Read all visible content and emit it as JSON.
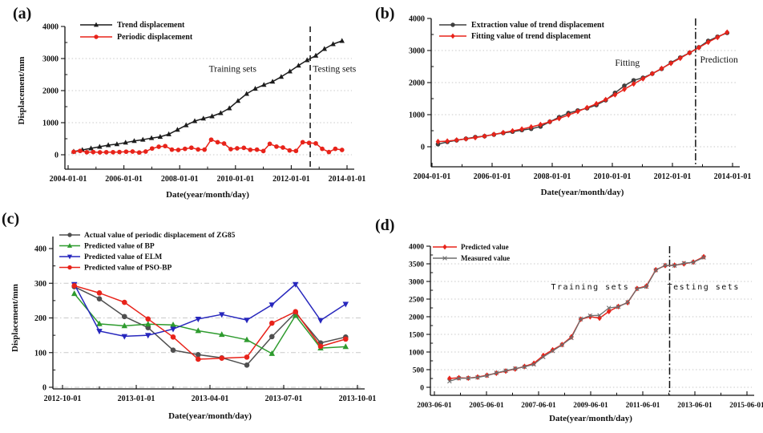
{
  "chart_data": [
    {
      "id": "a",
      "panel_label": "(a)",
      "type": "line",
      "xlabel": "Date(year/month/day)",
      "ylabel": "Displacement/mm",
      "xlim": [
        2004,
        2014
      ],
      "ylim": [
        0,
        4000
      ],
      "grid": "dotted",
      "legend_position": "top-left",
      "x_ticks": [
        {
          "v": 2004,
          "t": "2004-01-01"
        },
        {
          "v": 2006,
          "t": "2006-01-01"
        },
        {
          "v": 2008,
          "t": "2008-01-01"
        },
        {
          "v": 2010,
          "t": "2010-01-01"
        },
        {
          "v": 2012,
          "t": "2012-01-01"
        },
        {
          "v": 2014,
          "t": "2014-01-01"
        }
      ],
      "y_ticks": [
        {
          "v": 0,
          "t": "0"
        },
        {
          "v": 1000,
          "t": "1000"
        },
        {
          "v": 2000,
          "t": "2000"
        },
        {
          "v": 3000,
          "t": "3000"
        },
        {
          "v": 4000,
          "t": "4000"
        }
      ],
      "annotations": [
        {
          "text": "Training sets",
          "x": 2009.9,
          "y": 2590
        },
        {
          "text": "Testing sets",
          "x": 2013.55,
          "y": 2590
        }
      ],
      "vline": {
        "x": 2012.68,
        "style": "dashed"
      },
      "series": [
        {
          "name": "Trend displacement",
          "color": "#1c1c1c",
          "marker": "triangle-up",
          "x": [
            2004.2,
            2004.51,
            2004.82,
            2005.13,
            2005.44,
            2005.75,
            2006.06,
            2006.37,
            2006.68,
            2006.99,
            2007.3,
            2007.61,
            2007.92,
            2008.23,
            2008.54,
            2008.85,
            2009.16,
            2009.47,
            2009.78,
            2010.09,
            2010.4,
            2010.71,
            2011.02,
            2011.33,
            2011.64,
            2011.95,
            2012.26,
            2012.57,
            2012.88,
            2013.19,
            2013.5,
            2013.82
          ],
          "y": [
            100,
            150,
            200,
            250,
            300,
            330,
            380,
            430,
            470,
            520,
            560,
            640,
            780,
            920,
            1050,
            1130,
            1200,
            1300,
            1450,
            1680,
            1900,
            2060,
            2180,
            2280,
            2430,
            2600,
            2780,
            2950,
            3090,
            3300,
            3450,
            3550
          ]
        },
        {
          "name": "Periodic displacement",
          "color": "#e8231a",
          "marker": "circle",
          "x": [
            2004.2,
            2004.43,
            2004.67,
            2004.9,
            2005.14,
            2005.37,
            2005.61,
            2005.84,
            2006.08,
            2006.31,
            2006.55,
            2006.78,
            2007.01,
            2007.25,
            2007.48,
            2007.72,
            2007.95,
            2008.19,
            2008.42,
            2008.66,
            2008.89,
            2009.13,
            2009.36,
            2009.59,
            2009.83,
            2010.06,
            2010.3,
            2010.53,
            2010.77,
            2011.0,
            2011.23,
            2011.47,
            2011.7,
            2011.94,
            2012.17,
            2012.41,
            2012.64,
            2012.88,
            2013.11,
            2013.35,
            2013.58,
            2013.82
          ],
          "y": [
            90,
            120,
            80,
            85,
            75,
            80,
            80,
            85,
            95,
            100,
            70,
            100,
            195,
            250,
            270,
            160,
            150,
            185,
            220,
            165,
            160,
            470,
            390,
            350,
            175,
            200,
            215,
            155,
            160,
            115,
            340,
            255,
            225,
            135,
            120,
            390,
            370,
            355,
            185,
            85,
            185,
            150
          ]
        }
      ]
    },
    {
      "id": "b",
      "panel_label": "(b)",
      "type": "line",
      "xlabel": "Date(year/month/day)",
      "ylabel": "",
      "xlim": [
        2004,
        2014
      ],
      "ylim": [
        0,
        4000
      ],
      "grid": "dotted",
      "legend_position": "top-left",
      "x_ticks": [
        {
          "v": 2004,
          "t": "2004-01-01"
        },
        {
          "v": 2006,
          "t": "2006-01-01"
        },
        {
          "v": 2008,
          "t": "2008-01-01"
        },
        {
          "v": 2010,
          "t": "2010-01-01"
        },
        {
          "v": 2012,
          "t": "2012-01-01"
        },
        {
          "v": 2014,
          "t": "2014-01-01"
        }
      ],
      "y_ticks": [
        {
          "v": 0,
          "t": "0"
        },
        {
          "v": 1000,
          "t": "1000"
        },
        {
          "v": 2000,
          "t": "2000"
        },
        {
          "v": 3000,
          "t": "3000"
        },
        {
          "v": 4000,
          "t": "4000"
        }
      ],
      "annotations": [
        {
          "text": "Fitting",
          "x": 2010.5,
          "y": 2520
        },
        {
          "text": "Prediction",
          "x": 2013.55,
          "y": 2620
        }
      ],
      "vline": {
        "x": 2012.77,
        "style": "dashdot"
      },
      "series": [
        {
          "name": "Extraction value of trend displacement",
          "color": "#3f3f3f",
          "marker": "circle",
          "x": [
            2004.2,
            2004.51,
            2004.82,
            2005.13,
            2005.44,
            2005.75,
            2006.06,
            2006.37,
            2006.68,
            2006.99,
            2007.3,
            2007.61,
            2007.92,
            2008.23,
            2008.54,
            2008.85,
            2009.16,
            2009.47,
            2009.78,
            2010.09,
            2010.4,
            2010.71,
            2011.02,
            2011.33,
            2011.64,
            2011.95,
            2012.26,
            2012.57,
            2012.88,
            2013.19,
            2013.5,
            2013.82
          ],
          "y": [
            80,
            150,
            200,
            250,
            300,
            330,
            380,
            430,
            470,
            520,
            560,
            630,
            780,
            920,
            1050,
            1130,
            1200,
            1300,
            1450,
            1680,
            1900,
            2070,
            2150,
            2280,
            2430,
            2620,
            2780,
            2930,
            3100,
            3300,
            3430,
            3550
          ]
        },
        {
          "name": "Fitting value of trend displacement",
          "color": "#e8231a",
          "marker": "diamond",
          "x": [
            2004.2,
            2004.51,
            2004.82,
            2005.13,
            2005.44,
            2005.75,
            2006.06,
            2006.37,
            2006.68,
            2006.99,
            2007.3,
            2007.61,
            2007.92,
            2008.23,
            2008.54,
            2008.85,
            2009.16,
            2009.47,
            2009.78,
            2010.09,
            2010.4,
            2010.71,
            2011.02,
            2011.33,
            2011.64,
            2011.95,
            2012.26,
            2012.57,
            2012.88,
            2013.19,
            2013.5,
            2013.82
          ],
          "y": [
            160,
            175,
            210,
            245,
            285,
            330,
            385,
            440,
            495,
            550,
            615,
            690,
            780,
            880,
            990,
            1100,
            1220,
            1340,
            1470,
            1620,
            1790,
            1960,
            2120,
            2280,
            2440,
            2600,
            2760,
            2930,
            3090,
            3260,
            3410,
            3570
          ]
        }
      ]
    },
    {
      "id": "c",
      "panel_label": "(c)",
      "type": "line",
      "xlabel": "Date(year/month/day)",
      "ylabel": "Displacement/mm",
      "xlim": [
        2012.75,
        2013.75
      ],
      "ylim": [
        0,
        400
      ],
      "grid": "dashdot",
      "legend_position": "top-left",
      "x_ticks": [
        {
          "v": 2012.75,
          "t": "2012-10-01"
        },
        {
          "v": 2013.0,
          "t": "2013-01-01"
        },
        {
          "v": 2013.25,
          "t": "2013-04-01"
        },
        {
          "v": 2013.5,
          "t": "2013-07-01"
        },
        {
          "v": 2013.75,
          "t": "2013-10-01"
        }
      ],
      "y_ticks": [
        {
          "v": 0,
          "t": "0"
        },
        {
          "v": 100,
          "t": "100"
        },
        {
          "v": 200,
          "t": "200"
        },
        {
          "v": 300,
          "t": "300"
        },
        {
          "v": 400,
          "t": "400"
        }
      ],
      "annotations": [],
      "vline": null,
      "series": [
        {
          "name": "Actual value of periodic displacement of ZG85",
          "color": "#4f4f4f",
          "marker": "circle",
          "x": [
            2012.79,
            2012.875,
            2012.96,
            2013.04,
            2013.125,
            2013.21,
            2013.29,
            2013.375,
            2013.46,
            2013.54,
            2013.625,
            2013.71
          ],
          "y": [
            290,
            255,
            204,
            172,
            107,
            94,
            85,
            64,
            146,
            215,
            128,
            145
          ]
        },
        {
          "name": "Predicted value of BP",
          "color": "#2e9b2e",
          "marker": "triangle-up",
          "x": [
            2012.79,
            2012.875,
            2012.96,
            2013.04,
            2013.125,
            2013.21,
            2013.29,
            2013.375,
            2013.46,
            2013.54,
            2013.625,
            2013.71
          ],
          "y": [
            270,
            183,
            177,
            182,
            180,
            163,
            152,
            137,
            97,
            207,
            113,
            117
          ]
        },
        {
          "name": "Predicted value of ELM",
          "color": "#2727bd",
          "marker": "triangle-down",
          "x": [
            2012.79,
            2012.875,
            2012.96,
            2013.04,
            2013.125,
            2013.21,
            2013.29,
            2013.375,
            2013.46,
            2013.54,
            2013.625,
            2013.71
          ],
          "y": [
            297,
            162,
            147,
            150,
            168,
            197,
            210,
            194,
            238,
            297,
            193,
            240
          ]
        },
        {
          "name": "Predicted value of PSO-BP",
          "color": "#e8231a",
          "marker": "circle",
          "x": [
            2012.79,
            2012.875,
            2012.96,
            2013.04,
            2013.125,
            2013.21,
            2013.29,
            2013.375,
            2013.46,
            2013.54,
            2013.625,
            2013.71
          ],
          "y": [
            293,
            272,
            245,
            197,
            145,
            81,
            84,
            87,
            185,
            218,
            118,
            139
          ]
        }
      ]
    },
    {
      "id": "d",
      "panel_label": "(d)",
      "type": "line",
      "xlabel": "Date(year/month/day)",
      "ylabel": "",
      "xlim": [
        2003.42,
        2015.42
      ],
      "ylim": [
        0,
        4000
      ],
      "grid": "dotted",
      "legend_position": "top-left",
      "x_ticks": [
        {
          "v": 2003.42,
          "t": "2003-06-01"
        },
        {
          "v": 2005.42,
          "t": "2005-06-01"
        },
        {
          "v": 2007.42,
          "t": "2007-06-01"
        },
        {
          "v": 2009.42,
          "t": "2009-06-01"
        },
        {
          "v": 2011.42,
          "t": "2011-06-01"
        },
        {
          "v": 2013.42,
          "t": "2013-06-01"
        },
        {
          "v": 2015.42,
          "t": "2015-06-01"
        }
      ],
      "y_ticks": [
        {
          "v": 0,
          "t": "0"
        },
        {
          "v": 500,
          "t": "500"
        },
        {
          "v": 1000,
          "t": "1000"
        },
        {
          "v": 1500,
          "t": "1500"
        },
        {
          "v": 2000,
          "t": "2000"
        },
        {
          "v": 2500,
          "t": "2500"
        },
        {
          "v": 3000,
          "t": "3000"
        },
        {
          "v": 3500,
          "t": "3500"
        },
        {
          "v": 4000,
          "t": "4000"
        }
      ],
      "annotations": [
        {
          "text": "Training sets",
          "x": 2009.4,
          "y": 2770,
          "font": "mono"
        },
        {
          "text": "Testing sets",
          "x": 2013.75,
          "y": 2770,
          "font": "mono"
        }
      ],
      "vline": {
        "x": 2012.45,
        "style": "dashdot"
      },
      "series": [
        {
          "name": "Predicted value",
          "color": "#e8231a",
          "marker": "diamond",
          "x": [
            2004.0,
            2004.36,
            2004.72,
            2005.08,
            2005.44,
            2005.8,
            2006.16,
            2006.52,
            2006.88,
            2007.24,
            2007.6,
            2007.96,
            2008.32,
            2008.68,
            2009.04,
            2009.4,
            2009.76,
            2010.12,
            2010.48,
            2010.84,
            2011.2,
            2011.56,
            2011.92,
            2012.28,
            2012.64,
            2013.0,
            2013.36,
            2013.76
          ],
          "y": [
            250,
            270,
            260,
            290,
            340,
            400,
            460,
            520,
            590,
            680,
            900,
            1060,
            1210,
            1430,
            1930,
            2000,
            1960,
            2150,
            2290,
            2400,
            2800,
            2870,
            3330,
            3450,
            3460,
            3500,
            3550,
            3700
          ]
        },
        {
          "name": "Measured value",
          "color": "#6e6e6e",
          "marker": "x",
          "x": [
            2004.0,
            2004.36,
            2004.72,
            2005.08,
            2005.44,
            2005.8,
            2006.16,
            2006.52,
            2006.88,
            2007.24,
            2007.6,
            2007.96,
            2008.32,
            2008.68,
            2009.04,
            2009.4,
            2009.76,
            2010.12,
            2010.48,
            2010.84,
            2011.2,
            2011.56,
            2011.92,
            2012.28,
            2012.64,
            2013.0,
            2013.36,
            2013.76
          ],
          "y": [
            170,
            255,
            260,
            280,
            330,
            410,
            470,
            530,
            580,
            650,
            860,
            1030,
            1200,
            1400,
            1930,
            2030,
            2040,
            2250,
            2280,
            2410,
            2790,
            2850,
            3320,
            3460,
            3450,
            3520,
            3540,
            3680
          ]
        }
      ]
    }
  ],
  "colors": {
    "black_series": "#1c1c1c",
    "red_series": "#e8231a",
    "green_series": "#2e9b2e",
    "blue_series": "#2727bd",
    "gray_series": "#4f4f4f",
    "gridline": "#c9c9c9",
    "axis": "#111111"
  }
}
